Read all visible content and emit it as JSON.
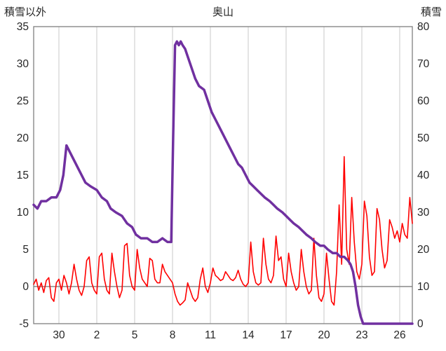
{
  "header": {
    "left_axis_title": "積雪以外",
    "title": "奥山",
    "right_axis_title": "積雪"
  },
  "chart_data": {
    "type": "line",
    "title": "奥山",
    "legend": "none",
    "grid": "vertical-only",
    "left_axis": {
      "label": "積雪以外",
      "min": -5,
      "max": 35,
      "ticks": [
        35,
        30,
        25,
        20,
        15,
        10,
        5,
        0,
        -5
      ]
    },
    "right_axis": {
      "label": "積雪",
      "min": 0,
      "max": 80,
      "ticks": [
        80,
        70,
        60,
        50,
        40,
        30,
        20,
        10,
        0
      ]
    },
    "x_axis": {
      "min": 0,
      "max": 30,
      "ticks": [
        {
          "pos": 2,
          "label": "30"
        },
        {
          "pos": 5,
          "label": "2"
        },
        {
          "pos": 8,
          "label": "5"
        },
        {
          "pos": 11,
          "label": "8"
        },
        {
          "pos": 14,
          "label": "11"
        },
        {
          "pos": 17,
          "label": "14"
        },
        {
          "pos": 20,
          "label": "17"
        },
        {
          "pos": 23,
          "label": "20"
        },
        {
          "pos": 26,
          "label": "23"
        },
        {
          "pos": 29,
          "label": "26"
        }
      ]
    },
    "colors": {
      "grid": "#c8c8c8",
      "zero_line": "#888888",
      "border": "#808080",
      "text": "#262626"
    },
    "series": [
      {
        "name": "積雪以外",
        "axis": "left",
        "color": "#ff0000",
        "width": 1.6,
        "points": [
          [
            0,
            0.3
          ],
          [
            0.2,
            1
          ],
          [
            0.4,
            -0.5
          ],
          [
            0.6,
            0.5
          ],
          [
            0.8,
            -0.8
          ],
          [
            1,
            0.8
          ],
          [
            1.2,
            1.2
          ],
          [
            1.4,
            -1.5
          ],
          [
            1.6,
            -2
          ],
          [
            1.8,
            0.5
          ],
          [
            2,
            1
          ],
          [
            2.2,
            -0.5
          ],
          [
            2.4,
            1.5
          ],
          [
            2.6,
            0.5
          ],
          [
            2.8,
            -1
          ],
          [
            3,
            0.5
          ],
          [
            3.2,
            3
          ],
          [
            3.4,
            1
          ],
          [
            3.6,
            -0.5
          ],
          [
            3.8,
            -1.2
          ],
          [
            4,
            0
          ],
          [
            4.2,
            3.5
          ],
          [
            4.4,
            4
          ],
          [
            4.6,
            0.5
          ],
          [
            4.8,
            -0.5
          ],
          [
            5,
            -1
          ],
          [
            5.2,
            4
          ],
          [
            5.4,
            4.5
          ],
          [
            5.6,
            1
          ],
          [
            5.8,
            -0.5
          ],
          [
            6,
            -1
          ],
          [
            6.2,
            4.5
          ],
          [
            6.4,
            2
          ],
          [
            6.6,
            0
          ],
          [
            6.8,
            -1.5
          ],
          [
            7,
            -0.5
          ],
          [
            7.2,
            5.5
          ],
          [
            7.4,
            5.8
          ],
          [
            7.6,
            1.5
          ],
          [
            7.8,
            0
          ],
          [
            8,
            -0.5
          ],
          [
            8.2,
            5
          ],
          [
            8.4,
            2.5
          ],
          [
            8.6,
            1
          ],
          [
            8.8,
            0.5
          ],
          [
            9,
            0
          ],
          [
            9.2,
            3.8
          ],
          [
            9.4,
            3.5
          ],
          [
            9.6,
            1
          ],
          [
            9.8,
            0.5
          ],
          [
            10,
            0.5
          ],
          [
            10.2,
            3
          ],
          [
            10.4,
            2
          ],
          [
            10.6,
            1.5
          ],
          [
            10.8,
            1
          ],
          [
            11,
            0.5
          ],
          [
            11.2,
            -1
          ],
          [
            11.4,
            -2
          ],
          [
            11.6,
            -2.5
          ],
          [
            11.8,
            -2.2
          ],
          [
            12,
            -1.8
          ],
          [
            12.2,
            0.5
          ],
          [
            12.4,
            -0.5
          ],
          [
            12.6,
            -1.5
          ],
          [
            12.8,
            -2
          ],
          [
            13,
            -1.5
          ],
          [
            13.2,
            1
          ],
          [
            13.4,
            2.5
          ],
          [
            13.6,
            0
          ],
          [
            13.8,
            -0.8
          ],
          [
            14,
            0.5
          ],
          [
            14.2,
            2.5
          ],
          [
            14.4,
            1.5
          ],
          [
            14.6,
            1.2
          ],
          [
            14.8,
            0.8
          ],
          [
            15,
            1
          ],
          [
            15.2,
            2
          ],
          [
            15.4,
            1.5
          ],
          [
            15.6,
            1
          ],
          [
            15.8,
            0.8
          ],
          [
            16,
            1.2
          ],
          [
            16.2,
            2.2
          ],
          [
            16.4,
            1
          ],
          [
            16.6,
            0.3
          ],
          [
            16.8,
            0
          ],
          [
            17,
            0.5
          ],
          [
            17.2,
            6
          ],
          [
            17.4,
            2
          ],
          [
            17.6,
            0.5
          ],
          [
            17.8,
            0.2
          ],
          [
            18,
            0.5
          ],
          [
            18.2,
            6.5
          ],
          [
            18.4,
            3
          ],
          [
            18.6,
            1
          ],
          [
            18.8,
            0.5
          ],
          [
            19,
            1.5
          ],
          [
            19.2,
            6.8
          ],
          [
            19.4,
            3.5
          ],
          [
            19.6,
            4
          ],
          [
            19.8,
            1
          ],
          [
            20,
            0
          ],
          [
            20.2,
            4.5
          ],
          [
            20.4,
            2
          ],
          [
            20.6,
            0.5
          ],
          [
            20.8,
            -0.5
          ],
          [
            21,
            0
          ],
          [
            21.2,
            5
          ],
          [
            21.4,
            2
          ],
          [
            21.6,
            0
          ],
          [
            21.8,
            -1
          ],
          [
            22,
            -0.5
          ],
          [
            22.2,
            6.5
          ],
          [
            22.4,
            1.5
          ],
          [
            22.6,
            -1.5
          ],
          [
            22.8,
            -2
          ],
          [
            23,
            -1
          ],
          [
            23.2,
            4.5
          ],
          [
            23.4,
            1
          ],
          [
            23.6,
            -2
          ],
          [
            23.8,
            -2.5
          ],
          [
            24,
            2
          ],
          [
            24.2,
            11
          ],
          [
            24.4,
            3
          ],
          [
            24.6,
            17.5
          ],
          [
            24.8,
            5
          ],
          [
            25,
            3
          ],
          [
            25.2,
            12
          ],
          [
            25.4,
            6
          ],
          [
            25.6,
            2
          ],
          [
            25.8,
            1
          ],
          [
            26,
            3
          ],
          [
            26.2,
            11.5
          ],
          [
            26.4,
            9.5
          ],
          [
            26.6,
            4
          ],
          [
            26.8,
            1.5
          ],
          [
            27,
            2
          ],
          [
            27.2,
            10.5
          ],
          [
            27.4,
            9
          ],
          [
            27.6,
            5
          ],
          [
            27.8,
            2.5
          ],
          [
            28,
            3.5
          ],
          [
            28.2,
            9
          ],
          [
            28.4,
            8
          ],
          [
            28.6,
            6.5
          ],
          [
            28.8,
            7.5
          ],
          [
            29,
            6
          ],
          [
            29.2,
            8.5
          ],
          [
            29.4,
            7
          ],
          [
            29.6,
            6.5
          ],
          [
            29.8,
            12
          ],
          [
            30,
            8.5
          ]
        ]
      },
      {
        "name": "積雪",
        "axis": "right",
        "color": "#7030a0",
        "width": 3.5,
        "points": [
          [
            0,
            32
          ],
          [
            0.3,
            31
          ],
          [
            0.6,
            33
          ],
          [
            1,
            33
          ],
          [
            1.4,
            34
          ],
          [
            1.8,
            34
          ],
          [
            2.1,
            36
          ],
          [
            2.35,
            40
          ],
          [
            2.6,
            48
          ],
          [
            2.9,
            46
          ],
          [
            3.2,
            44
          ],
          [
            3.5,
            42
          ],
          [
            3.8,
            40
          ],
          [
            4.1,
            38
          ],
          [
            4.5,
            37
          ],
          [
            5,
            36
          ],
          [
            5.4,
            34
          ],
          [
            5.8,
            33
          ],
          [
            6.1,
            31
          ],
          [
            6.5,
            30
          ],
          [
            7,
            29
          ],
          [
            7.4,
            27
          ],
          [
            7.8,
            26
          ],
          [
            8.1,
            24
          ],
          [
            8.5,
            23
          ],
          [
            9,
            23
          ],
          [
            9.4,
            22
          ],
          [
            9.8,
            22
          ],
          [
            10.2,
            23
          ],
          [
            10.6,
            22
          ],
          [
            10.9,
            22
          ],
          [
            11.05,
            50
          ],
          [
            11.2,
            75
          ],
          [
            11.35,
            76
          ],
          [
            11.5,
            75
          ],
          [
            11.65,
            76
          ],
          [
            11.8,
            75
          ],
          [
            12,
            74
          ],
          [
            12.2,
            72
          ],
          [
            12.5,
            69
          ],
          [
            12.8,
            66
          ],
          [
            13.1,
            64
          ],
          [
            13.5,
            63
          ],
          [
            13.8,
            60
          ],
          [
            14.1,
            57
          ],
          [
            14.4,
            55
          ],
          [
            14.7,
            53
          ],
          [
            15,
            51
          ],
          [
            15.3,
            49
          ],
          [
            15.6,
            47
          ],
          [
            15.9,
            45
          ],
          [
            16.2,
            43
          ],
          [
            16.5,
            42
          ],
          [
            16.8,
            40
          ],
          [
            17.1,
            38
          ],
          [
            17.4,
            37
          ],
          [
            17.7,
            36
          ],
          [
            18,
            35
          ],
          [
            18.3,
            34
          ],
          [
            18.7,
            33
          ],
          [
            19,
            32
          ],
          [
            19.3,
            31
          ],
          [
            19.7,
            30
          ],
          [
            20,
            29
          ],
          [
            20.3,
            28
          ],
          [
            20.6,
            27
          ],
          [
            21,
            26
          ],
          [
            21.3,
            25
          ],
          [
            21.6,
            24
          ],
          [
            22,
            23
          ],
          [
            22.3,
            22
          ],
          [
            22.7,
            21
          ],
          [
            23,
            21
          ],
          [
            23.3,
            20
          ],
          [
            23.7,
            19
          ],
          [
            24,
            19
          ],
          [
            24.3,
            18
          ],
          [
            24.6,
            18
          ],
          [
            24.9,
            17
          ],
          [
            25.1,
            16
          ],
          [
            25.3,
            14
          ],
          [
            25.5,
            10
          ],
          [
            25.7,
            5
          ],
          [
            25.9,
            2
          ],
          [
            26.1,
            0
          ],
          [
            27,
            0
          ],
          [
            28,
            0
          ],
          [
            29,
            0
          ],
          [
            30,
            0
          ]
        ]
      }
    ]
  }
}
